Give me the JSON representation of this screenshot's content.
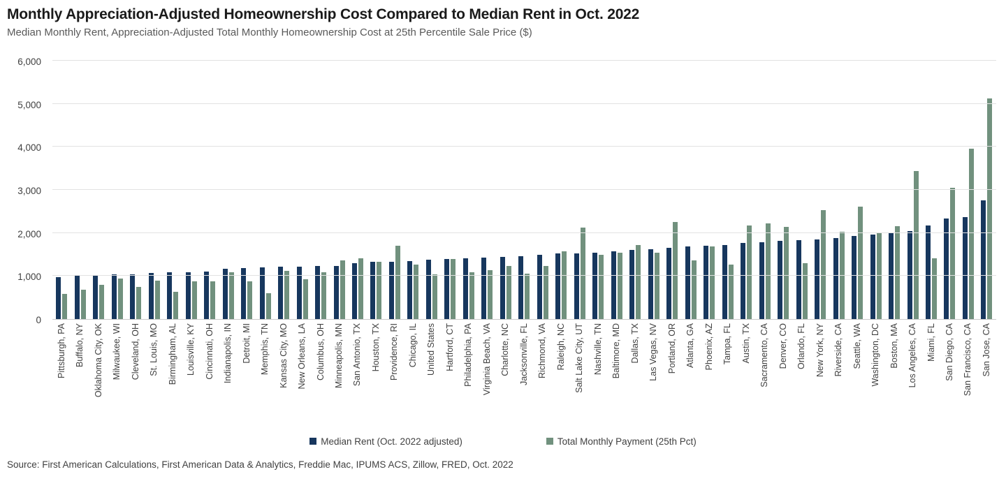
{
  "header": {
    "title": "Monthly Appreciation-Adjusted Homeownership Cost Compared to Median Rent in Oct. 2022",
    "subtitle": "Median Monthly Rent, Appreciation-Adjusted Total Monthly Homeownership Cost at 25th Percentile Sale Price ($)"
  },
  "chart_data": {
    "type": "bar",
    "title": "Monthly Appreciation-Adjusted Homeownership Cost Compared to Median Rent in Oct. 2022",
    "subtitle": "Median Monthly Rent, Appreciation-Adjusted Total Monthly Homeownership Cost at 25th Percentile Sale Price ($)",
    "xlabel": "",
    "ylabel": "",
    "ylim": [
      0,
      6000
    ],
    "ytick_step": 1000,
    "grid": true,
    "legend_position": "bottom",
    "categories": [
      "Pittsburgh, PA",
      "Buffalo, NY",
      "Oklahoma City, OK",
      "Milwaukee, WI",
      "Cleveland, OH",
      "St. Louis, MO",
      "Birmingham, AL",
      "Louisville, KY",
      "Cincinnati, OH",
      "Indianapolis, IN",
      "Detroit, MI",
      "Memphis, TN",
      "Kansas City, MO",
      "New Orleans, LA",
      "Columbus, OH",
      "Minneapolis, MN",
      "San Antonio, TX",
      "Houston, TX",
      "Providence, RI",
      "Chicago, IL",
      "United States",
      "Hartford, CT",
      "Philadelphia, PA",
      "Virginia Beach, VA",
      "Charlotte, NC",
      "Jacksonville, FL",
      "Richmond, VA",
      "Raleigh, NC",
      "Salt Lake City, UT",
      "Nashville, TN",
      "Baltimore, MD",
      "Dallas, TX",
      "Las Vegas, NV",
      "Portland, OR",
      "Atlanta, GA",
      "Phoenix, AZ",
      "Tampa, FL",
      "Austin, TX",
      "Sacramento, CA",
      "Denver, CO",
      "Orlando, FL",
      "New York, NY",
      "Riverside, CA",
      "Seattle, WA",
      "Washington, DC",
      "Boston, MA",
      "Los Angeles, CA",
      "Miami, FL",
      "San Diego, CA",
      "San Francisco, CA",
      "San Jose, CA"
    ],
    "series": [
      {
        "name": "Median Rent (Oct. 2022 adjusted)",
        "color": "#17375E",
        "values": [
          980,
          1030,
          1030,
          1040,
          1040,
          1070,
          1080,
          1080,
          1100,
          1170,
          1180,
          1200,
          1210,
          1220,
          1230,
          1240,
          1300,
          1330,
          1330,
          1340,
          1380,
          1400,
          1410,
          1420,
          1440,
          1460,
          1500,
          1520,
          1530,
          1540,
          1570,
          1610,
          1630,
          1660,
          1690,
          1710,
          1720,
          1770,
          1780,
          1820,
          1840,
          1850,
          1890,
          1930,
          1970,
          1990,
          2040,
          2170,
          2340,
          2370,
          2760
        ]
      },
      {
        "name": "Total Monthly Payment (25th Pct)",
        "color": "#71917E",
        "values": [
          590,
          680,
          790,
          940,
          740,
          900,
          640,
          870,
          880,
          1090,
          880,
          600,
          1120,
          930,
          1080,
          1360,
          1410,
          1330,
          1700,
          1270,
          1040,
          1390,
          1090,
          1140,
          1240,
          1050,
          1230,
          1580,
          2130,
          1490,
          1540,
          1720,
          1540,
          2250,
          1360,
          1690,
          1270,
          2170,
          2230,
          2140,
          1300,
          2530,
          2020,
          2610,
          1990,
          2150,
          3440,
          1410,
          3050,
          3950,
          5120
        ]
      }
    ]
  },
  "source": {
    "text": "Source: First American Calculations, First American Data & Analytics, Freddie Mac, IPUMS ACS, Zillow, FRED, Oct. 2022"
  }
}
